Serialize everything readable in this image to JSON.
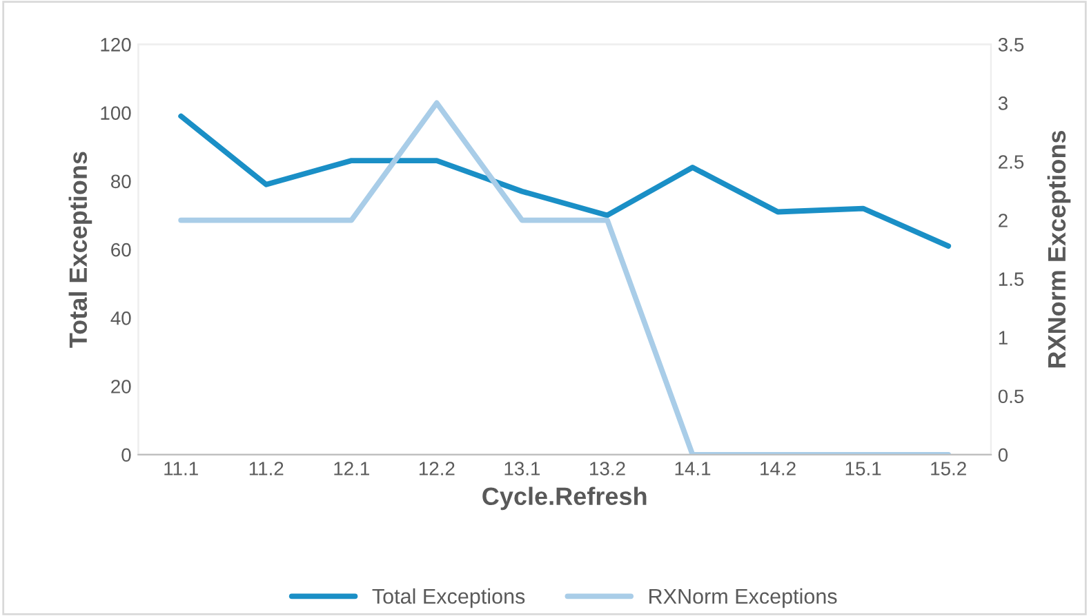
{
  "chart_data": {
    "type": "line",
    "xlabel": "Cycle.Refresh",
    "ylabel": "Total Exceptions",
    "y2label": "RXNorm Exceptions",
    "categories": [
      "11.1",
      "11.2",
      "12.1",
      "12.2",
      "13.1",
      "13.2",
      "14.1",
      "14.2",
      "15.1",
      "15.2"
    ],
    "series": [
      {
        "name": "Total Exceptions",
        "color": "#1a8fc6",
        "values": [
          99,
          79,
          86,
          86,
          77,
          70,
          84,
          71,
          72,
          61
        ]
      },
      {
        "name": "RXNorm Exceptions",
        "color": "#a9cde8",
        "axis": "y2",
        "values": [
          2,
          2,
          2,
          3,
          2,
          2,
          0,
          0,
          0,
          0
        ]
      }
    ],
    "ylim": [
      0,
      120
    ],
    "yticks": [
      0,
      20,
      40,
      60,
      80,
      100,
      120
    ],
    "y2lim": [
      0,
      3.5
    ],
    "y2ticks": [
      0,
      0.5,
      1,
      1.5,
      2,
      2.5,
      3,
      3.5
    ],
    "grid": false,
    "legend": "bottom",
    "marker": "none",
    "line_style": "solid"
  }
}
